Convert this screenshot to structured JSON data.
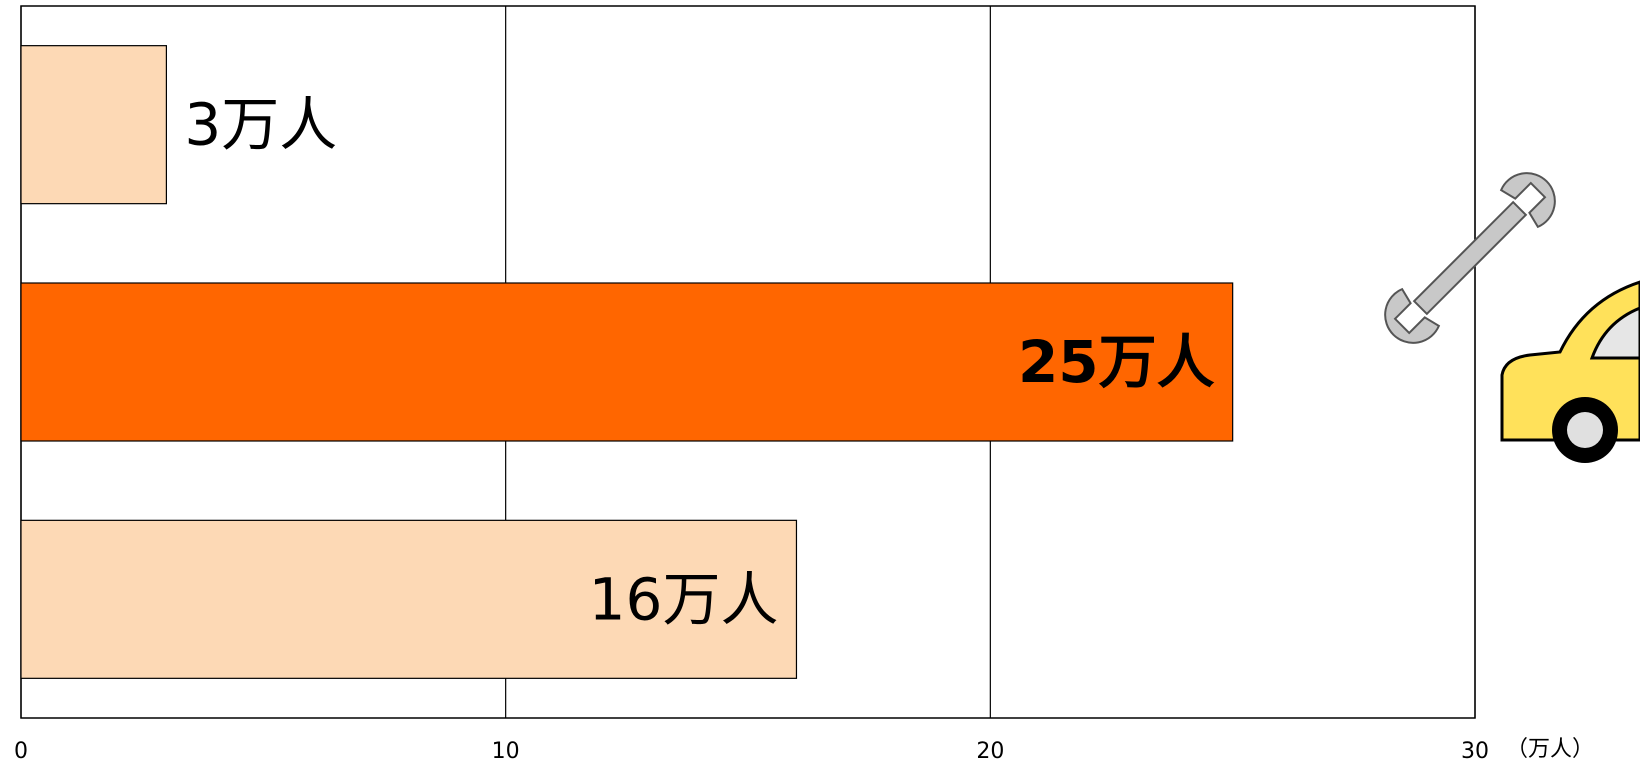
{
  "chart_data": {
    "type": "bar",
    "orientation": "horizontal",
    "categories": [
      "",
      "",
      ""
    ],
    "values": [
      3,
      25,
      16
    ],
    "data_labels": [
      "3万人",
      "25万人",
      "16万人"
    ],
    "highlighted_index": 1,
    "xlim": [
      0,
      30
    ],
    "x_ticks": [
      0,
      10,
      20,
      30
    ],
    "x_tick_labels": [
      "0",
      "10",
      "20",
      "30"
    ],
    "x_unit": "（万人）",
    "grid": "vertical",
    "legend": "none",
    "colors": {
      "bar": "#FDD9B5",
      "highlight": "#FF6600",
      "grid": "#000000"
    }
  },
  "illustration": {
    "icons": [
      "wrench-icon",
      "car-icon"
    ]
  }
}
